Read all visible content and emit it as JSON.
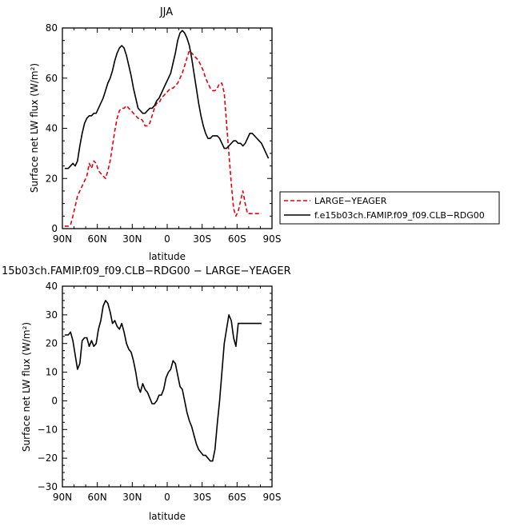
{
  "chart_data": [
    {
      "type": "line",
      "title": "JJA",
      "xlabel": "latitude",
      "ylabel": "Surface net LW flux (W/m²)",
      "xlim": [
        90,
        -90
      ],
      "ylim": [
        0,
        80
      ],
      "xticks": [
        "90N",
        "60N",
        "30N",
        "0",
        "30S",
        "60S",
        "90S"
      ],
      "xtick_values": [
        90,
        60,
        30,
        0,
        -30,
        -60,
        -90
      ],
      "yticks": [
        0,
        20,
        40,
        60,
        80
      ],
      "legend_position": "right",
      "series": [
        {
          "name": "LARGE−YEAGER",
          "color": "#e8000b",
          "style": "dashed",
          "x": [
            88,
            85,
            83,
            81,
            79,
            77,
            75,
            73,
            71,
            69,
            67,
            65,
            63,
            61,
            59,
            57,
            55,
            53,
            51,
            49,
            47,
            45,
            43,
            41,
            39,
            37,
            35,
            33,
            31,
            29,
            27,
            25,
            23,
            21,
            19,
            17,
            15,
            13,
            11,
            9,
            7,
            5,
            3,
            1,
            -1,
            -3,
            -5,
            -7,
            -9,
            -11,
            -13,
            -15,
            -17,
            -19,
            -21,
            -23,
            -25,
            -27,
            -29,
            -31,
            -33,
            -35,
            -37,
            -39,
            -41,
            -43,
            -45,
            -47,
            -49,
            -51,
            -53,
            -55,
            -57,
            -59,
            -61,
            -63,
            -65,
            -67,
            -69,
            -71,
            -73,
            -75,
            -77,
            -79,
            -81
          ],
          "y": [
            1,
            1,
            1.5,
            5,
            9,
            13,
            15,
            17,
            19,
            21,
            26,
            24,
            27,
            26,
            23,
            22,
            21,
            20,
            23,
            27,
            33,
            39,
            44,
            47,
            48,
            48,
            49,
            48,
            47,
            46,
            45,
            44,
            44,
            43,
            41,
            41,
            42,
            45,
            48,
            50,
            50,
            52,
            53,
            54,
            55,
            56,
            56,
            57,
            58,
            60,
            62,
            65,
            68,
            71,
            70,
            69,
            68,
            67,
            65,
            63,
            60,
            58,
            56,
            55,
            55,
            56,
            58,
            58,
            54,
            42,
            30,
            18,
            8,
            5,
            7,
            11,
            15,
            10,
            6,
            6,
            6,
            6,
            6,
            6,
            6
          ]
        },
        {
          "name": "f.e15b03ch.FAMIP.f09_f09.CLB−RDG00",
          "color": "#000000",
          "style": "solid",
          "x": [
            88,
            85,
            83,
            81,
            79,
            77,
            75,
            73,
            71,
            69,
            67,
            65,
            63,
            61,
            59,
            57,
            55,
            53,
            51,
            49,
            47,
            45,
            43,
            41,
            39,
            37,
            35,
            33,
            31,
            29,
            27,
            25,
            23,
            21,
            19,
            17,
            15,
            13,
            11,
            9,
            7,
            5,
            3,
            1,
            -1,
            -3,
            -5,
            -7,
            -9,
            -11,
            -13,
            -15,
            -17,
            -19,
            -21,
            -23,
            -25,
            -27,
            -29,
            -31,
            -33,
            -35,
            -37,
            -39,
            -41,
            -43,
            -45,
            -47,
            -49,
            -51,
            -53,
            -55,
            -57,
            -59,
            -61,
            -63,
            -65,
            -67,
            -69,
            -71,
            -73,
            -75,
            -77,
            -79,
            -81,
            -83,
            -85,
            -87
          ],
          "y": [
            24,
            24,
            25,
            26,
            25,
            27,
            33,
            38,
            42,
            44,
            45,
            45,
            46,
            46,
            48,
            50,
            52,
            55,
            58,
            60,
            63,
            67,
            70,
            72,
            73,
            72,
            69,
            65,
            61,
            56,
            52,
            48,
            47,
            46,
            46,
            47,
            48,
            48,
            49,
            51,
            52,
            54,
            56,
            58,
            60,
            62,
            66,
            70,
            75,
            78,
            79,
            78,
            76,
            73,
            68,
            62,
            56,
            50,
            45,
            41,
            38,
            36,
            36,
            37,
            37,
            37,
            36,
            34,
            32,
            32,
            33,
            34,
            35,
            35,
            34,
            34,
            33,
            34,
            36,
            38,
            38,
            37,
            36,
            35,
            34,
            32,
            30,
            28
          ]
        }
      ]
    },
    {
      "type": "line",
      "title": "15b03ch.FAMIP.f09_f09.CLB−RDG00 − LARGE−YEAGER",
      "xlabel": "latitude",
      "ylabel": "Surface net LW flux (W/m²)",
      "xlim": [
        90,
        -90
      ],
      "ylim": [
        -30,
        40
      ],
      "xticks": [
        "90N",
        "60N",
        "30N",
        "0",
        "30S",
        "60S",
        "90S"
      ],
      "xtick_values": [
        90,
        60,
        30,
        0,
        -30,
        -60,
        -90
      ],
      "yticks": [
        -30,
        -20,
        -10,
        0,
        10,
        20,
        30,
        40
      ],
      "series": [
        {
          "name": "",
          "color": "#000000",
          "style": "solid",
          "x": [
            88,
            85,
            83,
            81,
            79,
            77,
            75,
            73,
            71,
            69,
            67,
            65,
            63,
            61,
            59,
            57,
            55,
            53,
            51,
            49,
            47,
            45,
            43,
            41,
            39,
            37,
            35,
            33,
            31,
            29,
            27,
            25,
            23,
            21,
            19,
            17,
            15,
            13,
            11,
            9,
            7,
            5,
            3,
            1,
            -1,
            -3,
            -5,
            -7,
            -9,
            -11,
            -13,
            -15,
            -17,
            -19,
            -21,
            -23,
            -25,
            -27,
            -29,
            -31,
            -33,
            -35,
            -37,
            -39,
            -41,
            -43,
            -45,
            -47,
            -49,
            -51,
            -53,
            -55,
            -57,
            -59,
            -61,
            -63,
            -65,
            -67,
            -69,
            -71,
            -73,
            -75,
            -77,
            -79,
            -81
          ],
          "y": [
            23,
            23,
            24,
            21,
            16,
            11,
            13,
            21,
            22,
            22,
            19,
            21,
            19,
            20,
            25,
            28,
            33,
            35,
            34,
            31,
            27,
            28,
            26,
            25,
            27,
            24,
            20,
            18,
            17,
            14,
            10,
            5,
            3,
            6,
            4,
            3,
            1,
            -1,
            -1,
            0,
            2,
            2,
            4,
            8,
            10,
            11,
            14,
            13,
            9,
            5,
            4,
            0,
            -4,
            -7,
            -9,
            -12,
            -15,
            -17,
            -18,
            -19,
            -19,
            -20,
            -21,
            -21,
            -17,
            -8,
            0,
            10,
            20,
            25,
            30,
            28,
            22,
            19,
            27,
            27,
            27,
            27,
            27,
            27,
            27,
            27,
            27,
            27,
            27
          ]
        }
      ]
    }
  ]
}
